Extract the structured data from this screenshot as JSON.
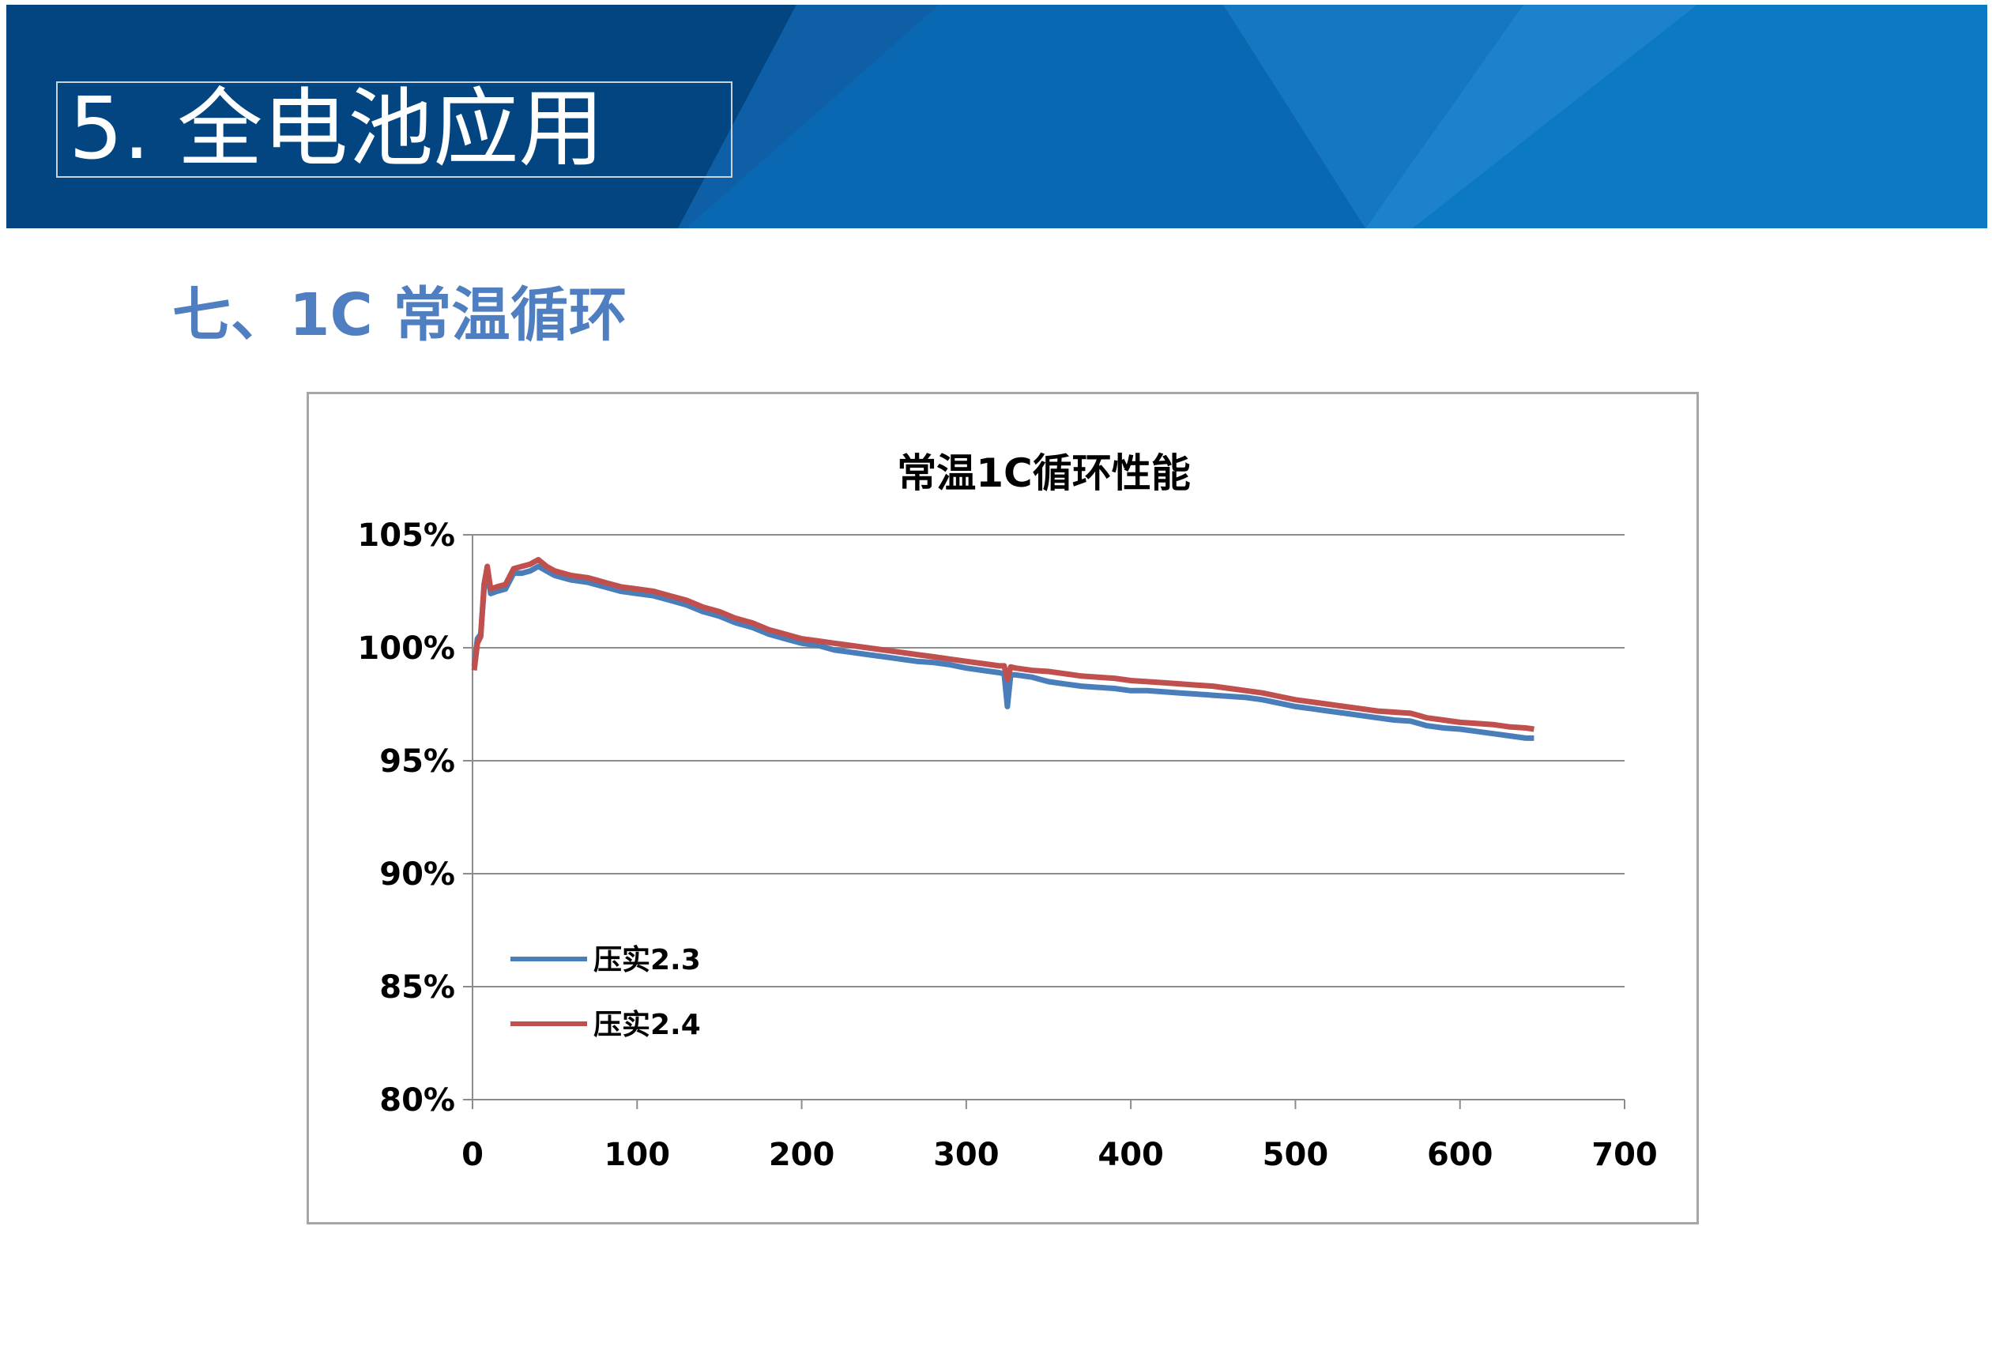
{
  "slide": {
    "title": "5. 全电池应用",
    "section_heading": "七、1C 常温循环"
  },
  "colors": {
    "banner_dark": "#034580",
    "banner_mid": "#0a67b1",
    "banner_light": "#1c82cc",
    "heading": "#4f7fc0"
  },
  "chart_data": {
    "type": "line",
    "title": "常温1C循环性能",
    "xlabel": "",
    "ylabel": "",
    "xlim": [
      0,
      700
    ],
    "ylim": [
      80,
      105
    ],
    "xticks": [
      "0",
      "100",
      "200",
      "300",
      "400",
      "500",
      "600",
      "700"
    ],
    "yticks": [
      "80%",
      "85%",
      "90%",
      "95%",
      "100%",
      "105%"
    ],
    "grid": true,
    "legend_position": "lower-left",
    "series": [
      {
        "name": "压实2.3",
        "color": "#4a7ebb",
        "points": [
          [
            1,
            99.2
          ],
          [
            3,
            100.4
          ],
          [
            5,
            100.6
          ],
          [
            7,
            102.6
          ],
          [
            9,
            103.5
          ],
          [
            11,
            102.4
          ],
          [
            15,
            102.5
          ],
          [
            20,
            102.6
          ],
          [
            25,
            103.3
          ],
          [
            30,
            103.3
          ],
          [
            35,
            103.4
          ],
          [
            40,
            103.6
          ],
          [
            45,
            103.4
          ],
          [
            50,
            103.2
          ],
          [
            60,
            103.0
          ],
          [
            70,
            102.9
          ],
          [
            80,
            102.7
          ],
          [
            90,
            102.5
          ],
          [
            100,
            102.4
          ],
          [
            110,
            102.3
          ],
          [
            120,
            102.1
          ],
          [
            130,
            101.9
          ],
          [
            140,
            101.6
          ],
          [
            150,
            101.4
          ],
          [
            160,
            101.1
          ],
          [
            170,
            100.9
          ],
          [
            180,
            100.6
          ],
          [
            190,
            100.4
          ],
          [
            200,
            100.2
          ],
          [
            210,
            100.1
          ],
          [
            220,
            99.9
          ],
          [
            230,
            99.8
          ],
          [
            240,
            99.7
          ],
          [
            250,
            99.6
          ],
          [
            260,
            99.5
          ],
          [
            270,
            99.4
          ],
          [
            280,
            99.35
          ],
          [
            290,
            99.25
          ],
          [
            300,
            99.1
          ],
          [
            310,
            99.0
          ],
          [
            320,
            98.9
          ],
          [
            323,
            98.85
          ],
          [
            325,
            97.4
          ],
          [
            327,
            98.8
          ],
          [
            330,
            98.8
          ],
          [
            340,
            98.7
          ],
          [
            350,
            98.5
          ],
          [
            360,
            98.4
          ],
          [
            370,
            98.3
          ],
          [
            380,
            98.25
          ],
          [
            390,
            98.2
          ],
          [
            400,
            98.1
          ],
          [
            410,
            98.1
          ],
          [
            420,
            98.05
          ],
          [
            430,
            98.0
          ],
          [
            440,
            97.95
          ],
          [
            450,
            97.9
          ],
          [
            460,
            97.85
          ],
          [
            470,
            97.8
          ],
          [
            480,
            97.7
          ],
          [
            490,
            97.55
          ],
          [
            500,
            97.4
          ],
          [
            510,
            97.3
          ],
          [
            520,
            97.2
          ],
          [
            530,
            97.1
          ],
          [
            540,
            97.0
          ],
          [
            550,
            96.9
          ],
          [
            560,
            96.8
          ],
          [
            570,
            96.75
          ],
          [
            580,
            96.55
          ],
          [
            590,
            96.45
          ],
          [
            600,
            96.4
          ],
          [
            610,
            96.3
          ],
          [
            620,
            96.2
          ],
          [
            630,
            96.1
          ],
          [
            640,
            96.0
          ],
          [
            645,
            96.0
          ]
        ]
      },
      {
        "name": "压实2.4",
        "color": "#c0504d",
        "points": [
          [
            1,
            99.0
          ],
          [
            3,
            100.2
          ],
          [
            5,
            100.5
          ],
          [
            7,
            102.8
          ],
          [
            9,
            103.6
          ],
          [
            11,
            102.6
          ],
          [
            15,
            102.7
          ],
          [
            20,
            102.8
          ],
          [
            25,
            103.5
          ],
          [
            30,
            103.6
          ],
          [
            35,
            103.7
          ],
          [
            40,
            103.9
          ],
          [
            45,
            103.6
          ],
          [
            50,
            103.4
          ],
          [
            60,
            103.2
          ],
          [
            70,
            103.1
          ],
          [
            80,
            102.9
          ],
          [
            90,
            102.7
          ],
          [
            100,
            102.6
          ],
          [
            110,
            102.5
          ],
          [
            120,
            102.3
          ],
          [
            130,
            102.1
          ],
          [
            140,
            101.8
          ],
          [
            150,
            101.6
          ],
          [
            160,
            101.3
          ],
          [
            170,
            101.1
          ],
          [
            180,
            100.8
          ],
          [
            190,
            100.6
          ],
          [
            200,
            100.4
          ],
          [
            210,
            100.3
          ],
          [
            220,
            100.2
          ],
          [
            230,
            100.1
          ],
          [
            240,
            100.0
          ],
          [
            250,
            99.9
          ],
          [
            260,
            99.8
          ],
          [
            270,
            99.7
          ],
          [
            280,
            99.6
          ],
          [
            290,
            99.5
          ],
          [
            300,
            99.4
          ],
          [
            310,
            99.3
          ],
          [
            320,
            99.2
          ],
          [
            323,
            99.2
          ],
          [
            325,
            98.6
          ],
          [
            327,
            99.15
          ],
          [
            330,
            99.1
          ],
          [
            340,
            99.0
          ],
          [
            350,
            98.95
          ],
          [
            360,
            98.85
          ],
          [
            370,
            98.75
          ],
          [
            380,
            98.7
          ],
          [
            390,
            98.65
          ],
          [
            400,
            98.55
          ],
          [
            410,
            98.5
          ],
          [
            420,
            98.45
          ],
          [
            430,
            98.4
          ],
          [
            440,
            98.35
          ],
          [
            450,
            98.3
          ],
          [
            460,
            98.2
          ],
          [
            470,
            98.1
          ],
          [
            480,
            98.0
          ],
          [
            490,
            97.85
          ],
          [
            500,
            97.7
          ],
          [
            510,
            97.6
          ],
          [
            520,
            97.5
          ],
          [
            530,
            97.4
          ],
          [
            540,
            97.3
          ],
          [
            550,
            97.2
          ],
          [
            560,
            97.15
          ],
          [
            570,
            97.1
          ],
          [
            580,
            96.9
          ],
          [
            590,
            96.8
          ],
          [
            600,
            96.7
          ],
          [
            610,
            96.65
          ],
          [
            620,
            96.6
          ],
          [
            630,
            96.5
          ],
          [
            640,
            96.45
          ],
          [
            645,
            96.4
          ]
        ]
      }
    ]
  }
}
